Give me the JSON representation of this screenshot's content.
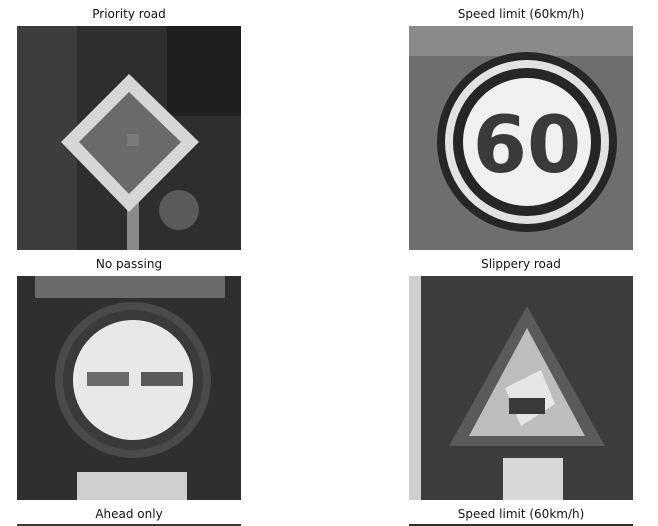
{
  "panels": [
    {
      "title": "Priority road"
    },
    {
      "title": "Speed limit (60km/h)",
      "sign_text": "60"
    },
    {
      "title": "No passing"
    },
    {
      "title": "Slippery road"
    },
    {
      "title": "Ahead only"
    },
    {
      "title": "Speed limit (60km/h)"
    }
  ]
}
